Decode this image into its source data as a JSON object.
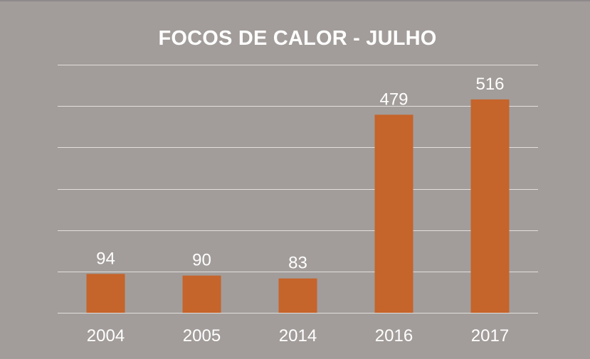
{
  "chart_data": {
    "type": "bar",
    "title": "FOCOS DE CALOR - JULHO",
    "categories": [
      "2004",
      "2005",
      "2014",
      "2016",
      "2017"
    ],
    "values": [
      94,
      90,
      83,
      479,
      516
    ],
    "xlabel": "",
    "ylabel": "",
    "ylim": [
      0,
      600
    ],
    "ygrid_step": 100,
    "grid": true,
    "legend": "none",
    "y_tick_labels_visible": false,
    "data_labels": true,
    "colors": {
      "background": "#a29d9a",
      "bar": "#c5642b",
      "gridline": "#e2dfdd",
      "text": "#ffffff"
    }
  }
}
